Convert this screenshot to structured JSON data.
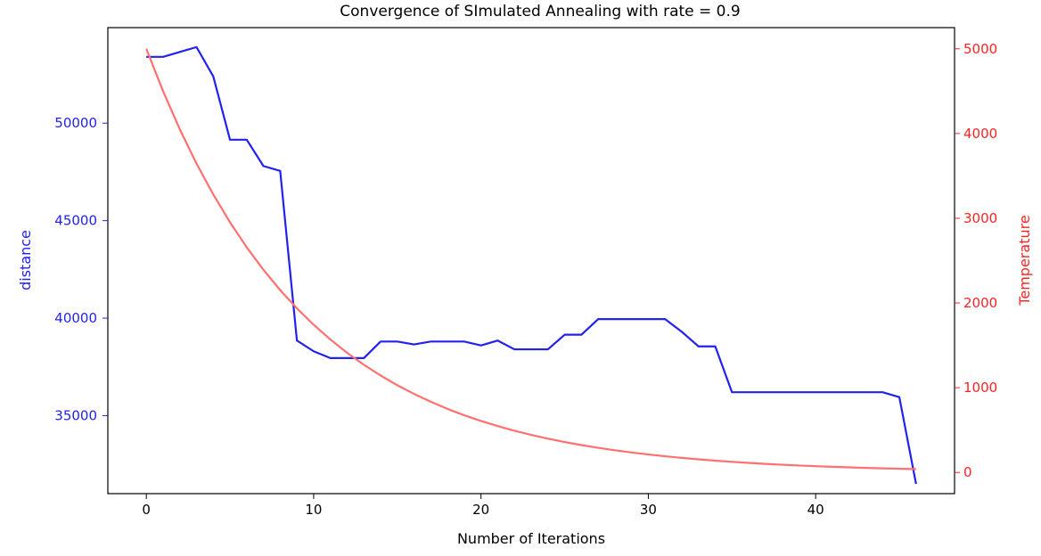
{
  "chart_data": {
    "type": "line",
    "title": "Convergence of SImulated Annealing with rate = 0.9",
    "xlabel": "Number of Iterations",
    "ylabel_left": "distance",
    "ylabel_right": "Temperature",
    "xlim": [
      -2.3,
      48.3
    ],
    "ylim_left": [
      31000,
      54900
    ],
    "ylim_right": [
      -250,
      5250
    ],
    "x_ticks": [
      0,
      10,
      20,
      30,
      40
    ],
    "y_ticks_left": [
      35000,
      40000,
      45000,
      50000
    ],
    "y_ticks_right": [
      0,
      1000,
      2000,
      3000,
      4000,
      5000
    ],
    "grid": false,
    "series": [
      {
        "axis": "left",
        "color": "#2222ee",
        "x": [
          0,
          1,
          2,
          3,
          4,
          5,
          6,
          7,
          8,
          9,
          10,
          11,
          12,
          13,
          14,
          15,
          16,
          17,
          18,
          19,
          20,
          21,
          22,
          23,
          24,
          25,
          26,
          27,
          28,
          29,
          30,
          31,
          32,
          33,
          34,
          35,
          36,
          37,
          38,
          39,
          40,
          41,
          42,
          43,
          44,
          45,
          46
        ],
        "values": [
          53400,
          53400,
          53650,
          53900,
          52400,
          49150,
          49150,
          47800,
          47550,
          38850,
          38300,
          37950,
          37950,
          37950,
          38800,
          38800,
          38650,
          38800,
          38800,
          38800,
          38600,
          38850,
          38400,
          38400,
          38400,
          39150,
          39150,
          39950,
          39950,
          39950,
          39950,
          39950,
          39300,
          38550,
          38550,
          36200,
          36200,
          36200,
          36200,
          36200,
          36200,
          36200,
          36200,
          36200,
          36200,
          35950,
          31500
        ]
      },
      {
        "axis": "right",
        "color": "#ff7070",
        "x": [
          0,
          1,
          2,
          3,
          4,
          5,
          6,
          7,
          8,
          9,
          10,
          11,
          12,
          13,
          14,
          15,
          16,
          17,
          18,
          19,
          20,
          21,
          22,
          23,
          24,
          25,
          26,
          27,
          28,
          29,
          30,
          31,
          32,
          33,
          34,
          35,
          36,
          37,
          38,
          39,
          40,
          41,
          42,
          43,
          44,
          45,
          46
        ],
        "values": [
          5000,
          4500,
          4050,
          3645,
          3281,
          2952,
          2657,
          2391,
          2152,
          1937,
          1743,
          1569,
          1412,
          1271,
          1144,
          1029,
          927,
          834,
          750,
          675,
          608,
          547,
          492,
          443,
          399,
          359,
          323,
          291,
          262,
          236,
          212,
          191,
          172,
          155,
          139,
          125,
          113,
          101,
          91,
          82,
          74,
          67,
          60,
          54,
          48,
          44,
          39
        ]
      }
    ]
  }
}
